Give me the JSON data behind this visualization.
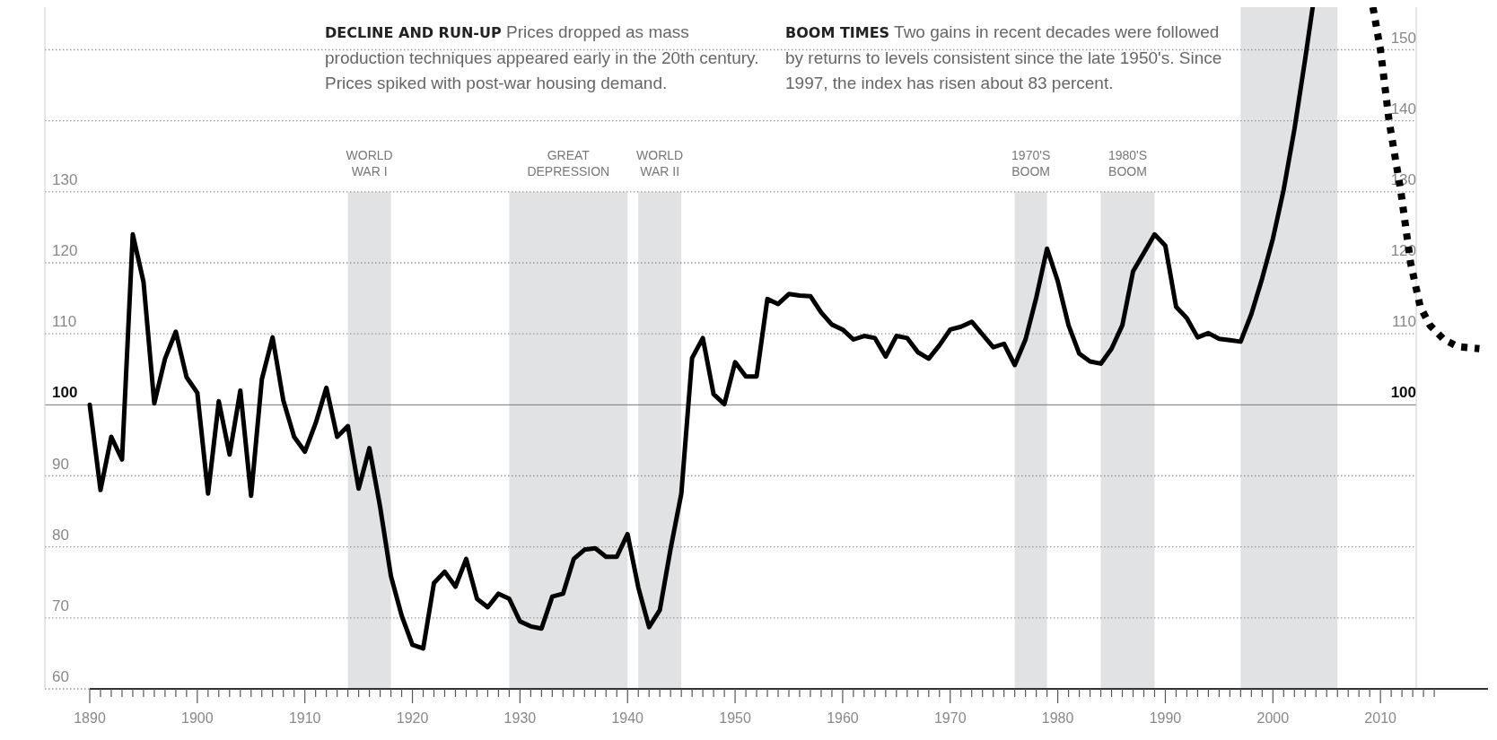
{
  "chart_data": {
    "type": "line",
    "annotations": [
      "DECLINE AND RUN-UP",
      "Prices dropped as mass production techniques appeared early in the 20th century. Prices spiked with post-war housing demand.",
      "BOOM TIMES",
      "Two gains in recent decades were followed by returns to levels consistent since the late 1950's. Since 1997, the index has risen about 83 percent."
    ],
    "series": [
      {
        "color": "#000000",
        "line_style": "solid",
        "x": [
          1890,
          1891,
          1892,
          1893,
          1894,
          1895,
          1896,
          1897,
          1898,
          1899,
          1900,
          1901,
          1902,
          1903,
          1904,
          1905,
          1906,
          1907,
          1908,
          1909,
          1910,
          1911,
          1912,
          1913,
          1914,
          1915,
          1916,
          1917,
          1918,
          1919,
          1920,
          1921,
          1922,
          1923,
          1924,
          1925,
          1926,
          1927,
          1928,
          1929,
          1930,
          1931,
          1932,
          1933,
          1934,
          1935,
          1936,
          1937,
          1938,
          1939,
          1940,
          1941,
          1942,
          1943,
          1944,
          1945,
          1946,
          1947,
          1948,
          1949,
          1950,
          1951,
          1952,
          1953,
          1954,
          1955,
          1956,
          1957,
          1958,
          1959,
          1960,
          1961,
          1962,
          1963,
          1964,
          1965,
          1966,
          1967,
          1968,
          1969,
          1970,
          1971,
          1972,
          1973,
          1974,
          1975,
          1976,
          1977,
          1978,
          1979,
          1980,
          1981,
          1982,
          1983,
          1984,
          1985,
          1986,
          1987,
          1988,
          1989,
          1990,
          1991,
          1992,
          1993,
          1994,
          1995,
          1996,
          1997,
          1998,
          1999,
          2000,
          2001,
          2002,
          2003,
          2003.7
        ],
        "values": [
          100,
          88,
          95.5,
          92.3,
          124,
          117.3,
          100.2,
          106.5,
          110.3,
          103.9,
          101.7,
          87.5,
          100.5,
          93,
          102,
          87.2,
          103.6,
          109.5,
          100.6,
          95.5,
          93.4,
          97.4,
          102.4,
          95.5,
          97,
          88.2,
          93.9,
          85.6,
          75.9,
          70.3,
          66.2,
          65.7,
          74.9,
          76.5,
          74.4,
          78.3,
          72.7,
          71.5,
          73.4,
          72.7,
          69.5,
          68.8,
          68.5,
          73,
          73.4,
          78.3,
          79.6,
          79.8,
          78.6,
          78.6,
          81.8,
          74.3,
          68.7,
          71.1,
          79.7,
          87.5,
          106.6,
          109.4,
          101.5,
          100.1,
          106,
          104,
          104,
          114.9,
          114.2,
          115.6,
          115.4,
          115.3,
          113,
          111.3,
          110.6,
          109.2,
          109.7,
          109.4,
          106.8,
          109.7,
          109.4,
          107.4,
          106.5,
          108.4,
          110.6,
          111,
          111.7,
          109.9,
          108.1,
          108.6,
          105.6,
          109.2,
          115.1,
          122,
          117.4,
          111.2,
          107.2,
          106.1,
          105.8,
          107.9,
          111.2,
          118.8,
          121.4,
          124,
          122.4,
          113.8,
          112.2,
          109.5,
          110.1,
          109.3,
          109.1,
          108.9,
          112.8,
          117.8,
          123.4,
          130.3,
          138.8,
          148.7,
          156
        ]
      },
      {
        "color": "#000000",
        "line_style": "dotted",
        "x": [
          2009.3,
          2010,
          2010.8,
          2011.9,
          2012.8,
          2013.7,
          2014.6,
          2015.9,
          2017.2,
          2019.2
        ],
        "values": [
          156,
          150,
          140,
          130,
          120,
          113.8,
          111.2,
          109.2,
          108.2,
          107.9
        ]
      }
    ],
    "xlim": [
      1890,
      2020
    ],
    "ylim": [
      60,
      156
    ],
    "y2lim": [
      60,
      156
    ],
    "yticks": [
      60,
      70,
      80,
      90,
      100,
      110,
      120,
      130
    ],
    "y2ticks": [
      100,
      110,
      120,
      130,
      140,
      150
    ],
    "xticks": [
      1890,
      {
        "value": 1891,
        "label": null
      },
      {
        "value": 1892,
        "label": null
      },
      {
        "value": 1893,
        "label": null
      },
      {
        "value": 1894,
        "label": null
      },
      {
        "value": 1895,
        "label": null
      },
      {
        "value": 1896,
        "label": null
      },
      {
        "value": 1897,
        "label": null
      },
      {
        "value": 1898,
        "label": null
      },
      {
        "value": 1899,
        "label": null
      },
      1900,
      {
        "value": 1901,
        "label": null
      },
      {
        "value": 1902,
        "label": null
      },
      {
        "value": 1903,
        "label": null
      },
      {
        "value": 1904,
        "label": null
      },
      {
        "value": 1905,
        "label": null
      },
      {
        "value": 1906,
        "label": null
      },
      {
        "value": 1907,
        "label": null
      },
      {
        "value": 1908,
        "label": null
      },
      {
        "value": 1909,
        "label": null
      },
      1910,
      {
        "value": 1911,
        "label": null
      },
      {
        "value": 1912,
        "label": null
      },
      {
        "value": 1913,
        "label": null
      },
      {
        "value": 1914,
        "label": null
      },
      {
        "value": 1915,
        "label": null
      },
      {
        "value": 1916,
        "label": null
      },
      {
        "value": 1917,
        "label": null
      },
      {
        "value": 1918,
        "label": null
      },
      {
        "value": 1919,
        "label": null
      },
      1920,
      {
        "value": 1921,
        "label": null
      },
      {
        "value": 1922,
        "label": null
      },
      {
        "value": 1923,
        "label": null
      },
      {
        "value": 1924,
        "label": null
      },
      {
        "value": 1925,
        "label": null
      },
      {
        "value": 1926,
        "label": null
      },
      {
        "value": 1927,
        "label": null
      },
      {
        "value": 1928,
        "label": null
      },
      {
        "value": 1929,
        "label": null
      },
      1930,
      {
        "value": 1931,
        "label": null
      },
      {
        "value": 1932,
        "label": null
      },
      {
        "value": 1933,
        "label": null
      },
      {
        "value": 1934,
        "label": null
      },
      {
        "value": 1935,
        "label": null
      },
      {
        "value": 1936,
        "label": null
      },
      {
        "value": 1937,
        "label": null
      },
      {
        "value": 1938,
        "label": null
      },
      {
        "value": 1939,
        "label": null
      },
      1940,
      {
        "value": 1941,
        "label": null
      },
      {
        "value": 1942,
        "label": null
      },
      {
        "value": 1943,
        "label": null
      },
      {
        "value": 1944,
        "label": null
      },
      {
        "value": 1945,
        "label": null
      },
      {
        "value": 1946,
        "label": null
      },
      {
        "value": 1947,
        "label": null
      },
      {
        "value": 1948,
        "label": null
      },
      {
        "value": 1949,
        "label": null
      },
      1950,
      {
        "value": 1951,
        "label": null
      },
      {
        "value": 1952,
        "label": null
      },
      {
        "value": 1953,
        "label": null
      },
      {
        "value": 1954,
        "label": null
      },
      {
        "value": 1955,
        "label": null
      },
      {
        "value": 1956,
        "label": null
      },
      {
        "value": 1957,
        "label": null
      },
      {
        "value": 1958,
        "label": null
      },
      {
        "value": 1959,
        "label": null
      },
      1960,
      {
        "value": 1961,
        "label": null
      },
      {
        "value": 1962,
        "label": null
      },
      {
        "value": 1963,
        "label": null
      },
      {
        "value": 1964,
        "label": null
      },
      {
        "value": 1965,
        "label": null
      },
      {
        "value": 1966,
        "label": null
      },
      {
        "value": 1967,
        "label": null
      },
      {
        "value": 1968,
        "label": null
      },
      {
        "value": 1969,
        "label": null
      },
      1970,
      {
        "value": 1971,
        "label": null
      },
      {
        "value": 1972,
        "label": null
      },
      {
        "value": 1973,
        "label": null
      },
      {
        "value": 1974,
        "label": null
      },
      {
        "value": 1975,
        "label": null
      },
      {
        "value": 1976,
        "label": null
      },
      {
        "value": 1977,
        "label": null
      },
      {
        "value": 1978,
        "label": null
      },
      {
        "value": 1979,
        "label": null
      },
      1980,
      {
        "value": 1981,
        "label": null
      },
      {
        "value": 1982,
        "label": null
      },
      {
        "value": 1983,
        "label": null
      },
      {
        "value": 1984,
        "label": null
      },
      {
        "value": 1985,
        "label": null
      },
      {
        "value": 1986,
        "label": null
      },
      {
        "value": 1987,
        "label": null
      },
      {
        "value": 1988,
        "label": null
      },
      {
        "value": 1989,
        "label": null
      },
      1990,
      {
        "value": 1991,
        "label": null
      },
      {
        "value": 1992,
        "label": null
      },
      {
        "value": 1993,
        "label": null
      },
      {
        "value": 1994,
        "label": null
      },
      {
        "value": 1995,
        "label": null
      },
      {
        "value": 1996,
        "label": null
      },
      {
        "value": 1997,
        "label": null
      },
      {
        "value": 1998,
        "label": null
      },
      {
        "value": 1999,
        "label": null
      },
      2000,
      {
        "value": 2001,
        "label": null
      },
      {
        "value": 2002,
        "label": null
      },
      {
        "value": 2003,
        "label": null
      },
      {
        "value": 2004,
        "label": null
      },
      {
        "value": 2005,
        "label": null
      },
      {
        "value": 2006,
        "label": null
      },
      {
        "value": 2007,
        "label": null
      },
      {
        "value": 2008,
        "label": null
      },
      {
        "value": 2009,
        "label": null
      },
      2010,
      {
        "value": 2011,
        "label": null
      },
      {
        "value": 2012,
        "label": null
      },
      {
        "value": 2013,
        "label": null
      },
      {
        "value": 2014,
        "label": null
      },
      {
        "value": 2015,
        "label": null
      }
    ],
    "bands": [
      {
        "axis": "x",
        "from": 1914,
        "to": 1918,
        "label": "WORLD WAR I",
        "color": "#e0e2e4"
      },
      {
        "axis": "x",
        "from": 1929,
        "to": 1940,
        "label": "GREAT DEPRESSION",
        "color": "#e0e2e4"
      },
      {
        "axis": "x",
        "from": 1941,
        "to": 1945,
        "label": "WORLD WAR II",
        "color": "#e0e2e4"
      },
      {
        "axis": "x",
        "from": 1976,
        "to": 1979,
        "label": "1970'S BOOM",
        "color": "#e0e2e4"
      },
      {
        "axis": "x",
        "from": 1984,
        "to": 1989,
        "label": "1980'S BOOM",
        "color": "#e0e2e4"
      },
      {
        "axis": "x",
        "from": 1997,
        "to": 2006,
        "color": "#e0e2e4"
      }
    ],
    "ref_lines": [
      {
        "axis": "y",
        "value": 100,
        "color": "#777777"
      }
    ],
    "grid": "y",
    "marker": "none"
  }
}
